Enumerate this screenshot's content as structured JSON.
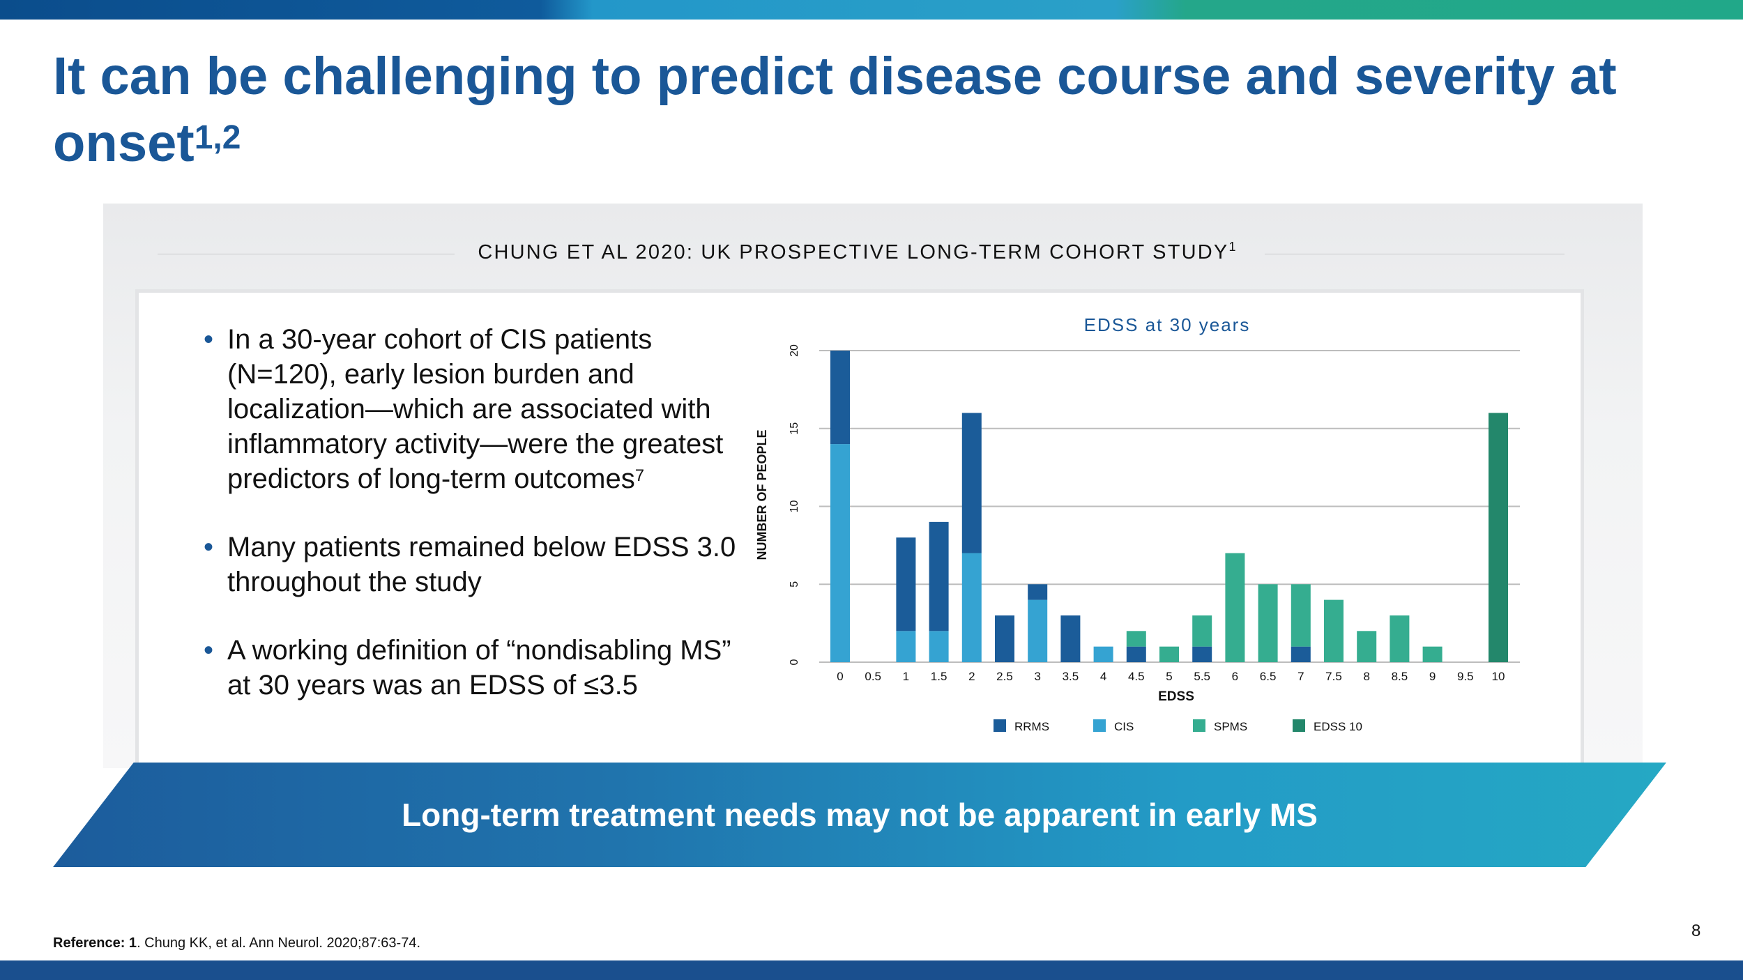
{
  "slide": {
    "title": "It can be challenging to predict disease course and severity at onset",
    "title_superscript": "1,2",
    "study_title": "CHUNG ET AL 2020: UK PROSPECTIVE LONG-TERM COHORT STUDY",
    "study_superscript": "1",
    "bullets": [
      {
        "text": "In a 30-year cohort of CIS patients (N=120), early lesion burden and localization—which are associated with inflammatory activity—were the greatest predictors of long-term outcomes",
        "sup": "7"
      },
      {
        "text": "Many patients remained below EDSS 3.0 throughout the study",
        "sup": ""
      },
      {
        "text": "A working definition of “nondisabling MS” at 30 years was an EDSS of ≤3.5",
        "sup": ""
      }
    ],
    "bullet_symbol": "•",
    "banner": "Long-term treatment needs may not be apparent in early MS",
    "reference_label": "Reference: 1",
    "reference_text": ". Chung KK, et al. Ann Neurol. 2020;87:63-74.",
    "page_number": "8"
  },
  "colors": {
    "title": "#1a5797",
    "RRMS": "#1b5c99",
    "CIS": "#35a3d2",
    "SPMS": "#35ad90",
    "EDSS 10": "#23876b",
    "gridline": "#bdbdbd"
  },
  "chart_data": {
    "type": "bar",
    "stacked": true,
    "title": "EDSS at 30 years",
    "xlabel": "EDSS",
    "ylabel": "NUMBER OF PEOPLE",
    "ylim": [
      0,
      20
    ],
    "yticks": [
      "0",
      "5",
      "10",
      "15",
      "20"
    ],
    "categories": [
      "0",
      "0.5",
      "1",
      "1.5",
      "2",
      "2.5",
      "3",
      "3.5",
      "4",
      "4.5",
      "5",
      "5.5",
      "6",
      "6.5",
      "7",
      "7.5",
      "8",
      "8.5",
      "9",
      "9.5",
      "10"
    ],
    "series": [
      {
        "name": "CIS",
        "values": [
          14,
          0,
          2,
          2,
          7,
          0,
          4,
          0,
          1,
          0,
          0,
          0,
          0,
          0,
          0,
          0,
          0,
          0,
          0,
          0,
          0
        ]
      },
      {
        "name": "RRMS",
        "values": [
          6,
          0,
          6,
          7,
          9,
          3,
          1,
          3,
          0,
          1,
          0,
          1,
          0,
          0,
          1,
          0,
          0,
          0,
          0,
          0,
          0
        ]
      },
      {
        "name": "SPMS",
        "values": [
          0,
          0,
          0,
          0,
          0,
          0,
          0,
          0,
          0,
          1,
          1,
          2,
          7,
          5,
          4,
          4,
          2,
          3,
          1,
          0,
          0
        ]
      },
      {
        "name": "EDSS 10",
        "values": [
          0,
          0,
          0,
          0,
          0,
          0,
          0,
          0,
          0,
          0,
          0,
          0,
          0,
          0,
          0,
          0,
          0,
          0,
          0,
          0,
          16
        ]
      }
    ],
    "legend": [
      "RRMS",
      "CIS",
      "SPMS",
      "EDSS 10"
    ],
    "legend_position": "bottom",
    "grid": true
  }
}
